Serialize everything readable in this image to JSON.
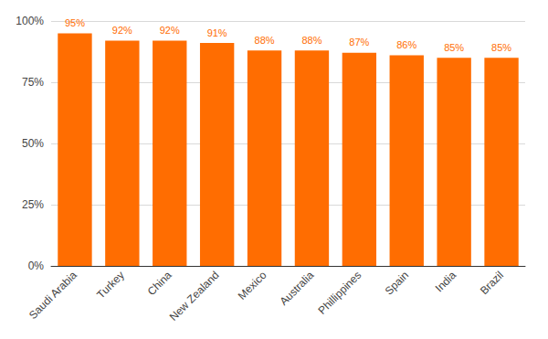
{
  "chart_data": {
    "type": "bar",
    "categories": [
      "Saudi Arabia",
      "Turkey",
      "China",
      "New Zealand",
      "Mexico",
      "Australia",
      "Phillippines",
      "Spain",
      "India",
      "Brazil"
    ],
    "values": [
      95,
      92,
      92,
      91,
      88,
      88,
      87,
      86,
      85,
      85
    ],
    "value_labels": [
      "95%",
      "92%",
      "92%",
      "91%",
      "88%",
      "88%",
      "87%",
      "86%",
      "85%",
      "85%"
    ],
    "color": "#ff6d01",
    "ylim": [
      0,
      100
    ],
    "yticks": [
      {
        "value": 0,
        "label": "0%"
      },
      {
        "value": 25,
        "label": "25%"
      },
      {
        "value": 50,
        "label": "50%"
      },
      {
        "value": 75,
        "label": "75%"
      },
      {
        "value": 100,
        "label": "100%"
      }
    ],
    "grid": true,
    "data_labels": true
  }
}
